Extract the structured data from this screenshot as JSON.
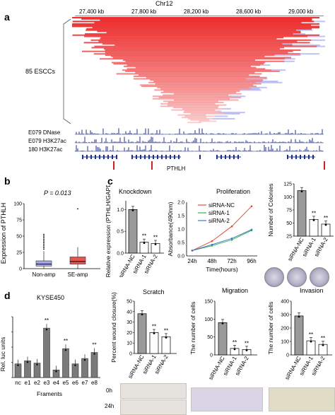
{
  "panel_a": {
    "letter": "a",
    "chrom": "Chr12",
    "ticks": [
      "27,400 kb",
      "27,800 kb",
      "28,200 kb",
      "28,600 kb",
      "29,000 kb"
    ],
    "group_label": "85 ESCCs",
    "tracks": [
      "E079 DNase",
      "E079 H3K27ac",
      "180 H3K27ac"
    ],
    "gene": "PTHLH"
  },
  "panel_b": {
    "letter": "b",
    "pvalue": "P = 0.013",
    "ylabel": "Expression of PTHLH",
    "yticks": [
      "0",
      "25",
      "50",
      "75",
      "100"
    ],
    "groups": [
      "Non-amp",
      "SE-amp"
    ]
  },
  "panel_c": {
    "letter": "c",
    "knockdown": {
      "title": "Knockdown",
      "ylabel": "Relative expression (PTHLH/GAPDH)",
      "yticks": [
        "0.0",
        "0.5",
        "1.0"
      ],
      "sig": [
        "**",
        "**"
      ]
    },
    "proliferation": {
      "title": "Proliferation",
      "ylabel": "Absorbance(490nm)",
      "xlabel": "Time(hours)",
      "yticks": [
        "0.0",
        "0.5",
        "1.0",
        "1.5",
        "2.0"
      ],
      "xticks": [
        "24h",
        "48h",
        "72h",
        "96h"
      ],
      "legend": [
        "siRNA-NC",
        "siRNA-1",
        "siRNA-2"
      ]
    },
    "colonies": {
      "ylabel": "Number of Colonies",
      "yticks": [
        "25",
        "50",
        "75",
        "100",
        "125"
      ],
      "sig": [
        "**",
        "**"
      ]
    },
    "scratch": {
      "title": "Scratch",
      "ylabel": "Percent wound closure(%)",
      "yticks": [
        "0",
        "10",
        "20",
        "30",
        "40",
        "50"
      ],
      "sig": [
        "**",
        "**"
      ],
      "rows": [
        "0h",
        "24h"
      ]
    },
    "migration": {
      "title": "Migration",
      "ylabel": "The number of cells",
      "yticks": [
        "0",
        "50",
        "100",
        "150"
      ],
      "sig": [
        "**",
        "**"
      ]
    },
    "invasion": {
      "title": "Invasion",
      "ylabel": "The number of cells",
      "yticks": [
        "0",
        "100",
        "200",
        "300",
        "400"
      ],
      "sig": [
        "**",
        "**"
      ]
    },
    "group_labels": [
      "siRNA-NC",
      "siRNA-1",
      "siRNA-2"
    ]
  },
  "panel_d": {
    "letter": "d",
    "title": "KYSE450",
    "ylabel": "Rel. luc units",
    "xlabel": "Framents",
    "yticks": [
      "0",
      "20",
      "40",
      "60",
      "80"
    ],
    "categories": [
      "nc",
      "e1",
      "e2",
      "e3",
      "e4",
      "e5",
      "e6",
      "e7",
      "e8"
    ],
    "sig": "**"
  },
  "chart_data": [
    {
      "type": "box",
      "id": "b",
      "categories": [
        "Non-amp",
        "SE-amp"
      ],
      "values": [
        {
          "q1": 4,
          "median": 7,
          "q3": 12
        },
        {
          "q1": 7,
          "median": 11,
          "q3": 18
        }
      ],
      "ylim": [
        0,
        100
      ]
    },
    {
      "type": "bar",
      "id": "knockdown",
      "categories": [
        "siRNA-NC",
        "siRNA-1",
        "siRNA-2"
      ],
      "values": [
        1.0,
        0.25,
        0.22
      ],
      "ylim": [
        0,
        1.2
      ]
    },
    {
      "type": "line",
      "id": "proliferation",
      "x": [
        "24h",
        "48h",
        "72h",
        "96h"
      ],
      "series": [
        {
          "name": "siRNA-NC",
          "values": [
            0.2,
            0.55,
            1.1,
            1.85
          ]
        },
        {
          "name": "siRNA-1",
          "values": [
            0.2,
            0.38,
            0.6,
            0.95
          ]
        },
        {
          "name": "siRNA-2",
          "values": [
            0.2,
            0.42,
            0.65,
            0.98
          ]
        }
      ],
      "ylim": [
        0,
        2.0
      ],
      "colors": [
        "#e8483c",
        "#3ab34a",
        "#3f78c8"
      ]
    },
    {
      "type": "bar",
      "id": "colonies",
      "categories": [
        "siRNA-NC",
        "siRNA-1",
        "siRNA-2"
      ],
      "values": [
        112,
        57,
        48
      ],
      "ylim": [
        25,
        125
      ]
    },
    {
      "type": "bar",
      "id": "scratch",
      "categories": [
        "siRNA-NC",
        "siRNA-1",
        "siRNA-2"
      ],
      "values": [
        38,
        20,
        16
      ],
      "ylim": [
        0,
        50
      ]
    },
    {
      "type": "bar",
      "id": "migration",
      "categories": [
        "siRNA-NC",
        "siRNA-1",
        "siRNA-2"
      ],
      "values": [
        90,
        18,
        15
      ],
      "ylim": [
        0,
        150
      ]
    },
    {
      "type": "bar",
      "id": "invasion",
      "categories": [
        "siRNA-NC",
        "siRNA-1",
        "siRNA-2"
      ],
      "values": [
        290,
        105,
        78
      ],
      "ylim": [
        0,
        400
      ]
    },
    {
      "type": "bar",
      "id": "luc",
      "categories": [
        "nc",
        "e1",
        "e2",
        "e3",
        "e4",
        "e5",
        "e6",
        "e7",
        "e8"
      ],
      "values": [
        18,
        22,
        19,
        65,
        10,
        38,
        18,
        25,
        33
      ],
      "ylim": [
        0,
        80
      ],
      "sig_index": [
        3,
        5,
        8
      ]
    }
  ]
}
